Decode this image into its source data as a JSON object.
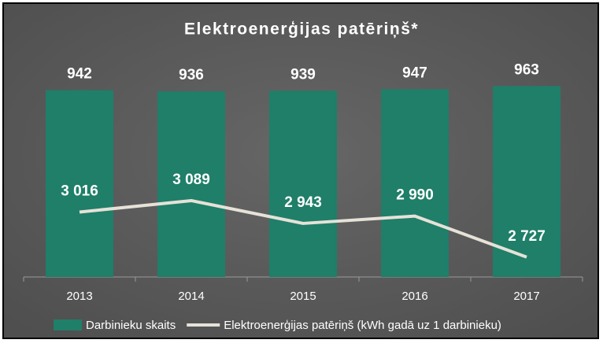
{
  "chart_data": {
    "type": "bar",
    "title": "Elektroenerģijas patēriņš*",
    "categories": [
      "2013",
      "2014",
      "2015",
      "2016",
      "2017"
    ],
    "series": [
      {
        "name": "Darbinieku skaits",
        "type": "bar",
        "color": "#1f7f69",
        "values": [
          942,
          936,
          939,
          947,
          963
        ]
      },
      {
        "name": "Elektroenerģijas patēriņš (kWh gadā uz 1 darbinieku)",
        "type": "line",
        "axis": "y2",
        "color": "#e6e2d8",
        "values": [
          3016,
          3089,
          2943,
          2990,
          2727
        ],
        "value_labels": [
          "3 016",
          "3 089",
          "2 943",
          "2 990",
          "2 727"
        ]
      }
    ],
    "ylim": [
      0,
      1000
    ],
    "y2lim": [
      2600,
      3870
    ],
    "legend": "bottom"
  }
}
